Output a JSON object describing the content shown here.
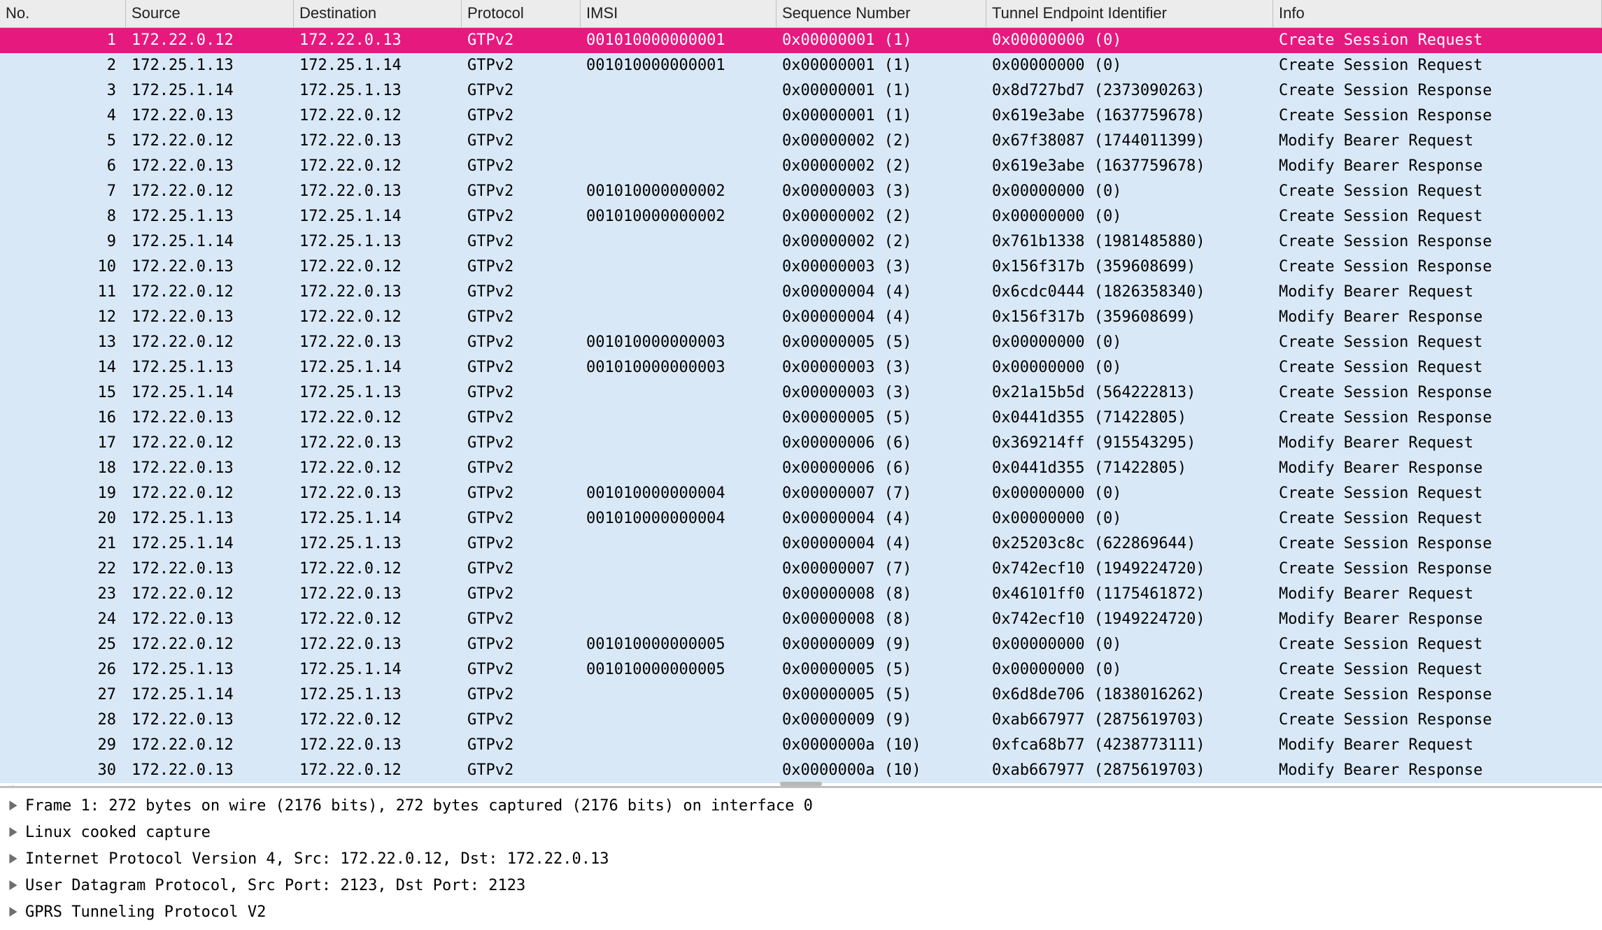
{
  "colors": {
    "header_bg": "#ececec",
    "header_border": "#c0c0c0",
    "row_selected_bg": "#e6197f",
    "row_selected_fg": "#ffffff",
    "row_alt_bg": "#d9e8f6",
    "row_bg": "#d9e8f6",
    "text": "#000000",
    "splitter": "#bfbfbf",
    "expander": "#6e6e6e",
    "gutter_line": "#9a9a9a"
  },
  "columns": {
    "no": "No.",
    "source": "Source",
    "destination": "Destination",
    "protocol": "Protocol",
    "imsi": "IMSI",
    "seq": "Sequence Number",
    "teid": "Tunnel Endpoint Identifier",
    "info": "Info"
  },
  "rows": [
    {
      "no": "1",
      "src": "172.22.0.12",
      "dst": "172.22.0.13",
      "prot": "GTPv2",
      "imsi": "001010000000001",
      "seq": "0x00000001 (1)",
      "teid": "0x00000000 (0)",
      "info": "Create Session Request",
      "selected": true
    },
    {
      "no": "2",
      "src": "172.25.1.13",
      "dst": "172.25.1.14",
      "prot": "GTPv2",
      "imsi": "001010000000001",
      "seq": "0x00000001 (1)",
      "teid": "0x00000000 (0)",
      "info": "Create Session Request"
    },
    {
      "no": "3",
      "src": "172.25.1.14",
      "dst": "172.25.1.13",
      "prot": "GTPv2",
      "imsi": "",
      "seq": "0x00000001 (1)",
      "teid": "0x8d727bd7 (2373090263)",
      "info": "Create Session Response"
    },
    {
      "no": "4",
      "src": "172.22.0.13",
      "dst": "172.22.0.12",
      "prot": "GTPv2",
      "imsi": "",
      "seq": "0x00000001 (1)",
      "teid": "0x619e3abe (1637759678)",
      "info": "Create Session Response"
    },
    {
      "no": "5",
      "src": "172.22.0.12",
      "dst": "172.22.0.13",
      "prot": "GTPv2",
      "imsi": "",
      "seq": "0x00000002 (2)",
      "teid": "0x67f38087 (1744011399)",
      "info": "Modify Bearer Request"
    },
    {
      "no": "6",
      "src": "172.22.0.13",
      "dst": "172.22.0.12",
      "prot": "GTPv2",
      "imsi": "",
      "seq": "0x00000002 (2)",
      "teid": "0x619e3abe (1637759678)",
      "info": "Modify Bearer Response"
    },
    {
      "no": "7",
      "src": "172.22.0.12",
      "dst": "172.22.0.13",
      "prot": "GTPv2",
      "imsi": "001010000000002",
      "seq": "0x00000003 (3)",
      "teid": "0x00000000 (0)",
      "info": "Create Session Request"
    },
    {
      "no": "8",
      "src": "172.25.1.13",
      "dst": "172.25.1.14",
      "prot": "GTPv2",
      "imsi": "001010000000002",
      "seq": "0x00000002 (2)",
      "teid": "0x00000000 (0)",
      "info": "Create Session Request"
    },
    {
      "no": "9",
      "src": "172.25.1.14",
      "dst": "172.25.1.13",
      "prot": "GTPv2",
      "imsi": "",
      "seq": "0x00000002 (2)",
      "teid": "0x761b1338 (1981485880)",
      "info": "Create Session Response"
    },
    {
      "no": "10",
      "src": "172.22.0.13",
      "dst": "172.22.0.12",
      "prot": "GTPv2",
      "imsi": "",
      "seq": "0x00000003 (3)",
      "teid": "0x156f317b (359608699)",
      "info": "Create Session Response"
    },
    {
      "no": "11",
      "src": "172.22.0.12",
      "dst": "172.22.0.13",
      "prot": "GTPv2",
      "imsi": "",
      "seq": "0x00000004 (4)",
      "teid": "0x6cdc0444 (1826358340)",
      "info": "Modify Bearer Request"
    },
    {
      "no": "12",
      "src": "172.22.0.13",
      "dst": "172.22.0.12",
      "prot": "GTPv2",
      "imsi": "",
      "seq": "0x00000004 (4)",
      "teid": "0x156f317b (359608699)",
      "info": "Modify Bearer Response"
    },
    {
      "no": "13",
      "src": "172.22.0.12",
      "dst": "172.22.0.13",
      "prot": "GTPv2",
      "imsi": "001010000000003",
      "seq": "0x00000005 (5)",
      "teid": "0x00000000 (0)",
      "info": "Create Session Request"
    },
    {
      "no": "14",
      "src": "172.25.1.13",
      "dst": "172.25.1.14",
      "prot": "GTPv2",
      "imsi": "001010000000003",
      "seq": "0x00000003 (3)",
      "teid": "0x00000000 (0)",
      "info": "Create Session Request"
    },
    {
      "no": "15",
      "src": "172.25.1.14",
      "dst": "172.25.1.13",
      "prot": "GTPv2",
      "imsi": "",
      "seq": "0x00000003 (3)",
      "teid": "0x21a15b5d (564222813)",
      "info": "Create Session Response"
    },
    {
      "no": "16",
      "src": "172.22.0.13",
      "dst": "172.22.0.12",
      "prot": "GTPv2",
      "imsi": "",
      "seq": "0x00000005 (5)",
      "teid": "0x0441d355 (71422805)",
      "info": "Create Session Response"
    },
    {
      "no": "17",
      "src": "172.22.0.12",
      "dst": "172.22.0.13",
      "prot": "GTPv2",
      "imsi": "",
      "seq": "0x00000006 (6)",
      "teid": "0x369214ff (915543295)",
      "info": "Modify Bearer Request"
    },
    {
      "no": "18",
      "src": "172.22.0.13",
      "dst": "172.22.0.12",
      "prot": "GTPv2",
      "imsi": "",
      "seq": "0x00000006 (6)",
      "teid": "0x0441d355 (71422805)",
      "info": "Modify Bearer Response"
    },
    {
      "no": "19",
      "src": "172.22.0.12",
      "dst": "172.22.0.13",
      "prot": "GTPv2",
      "imsi": "001010000000004",
      "seq": "0x00000007 (7)",
      "teid": "0x00000000 (0)",
      "info": "Create Session Request"
    },
    {
      "no": "20",
      "src": "172.25.1.13",
      "dst": "172.25.1.14",
      "prot": "GTPv2",
      "imsi": "001010000000004",
      "seq": "0x00000004 (4)",
      "teid": "0x00000000 (0)",
      "info": "Create Session Request"
    },
    {
      "no": "21",
      "src": "172.25.1.14",
      "dst": "172.25.1.13",
      "prot": "GTPv2",
      "imsi": "",
      "seq": "0x00000004 (4)",
      "teid": "0x25203c8c (622869644)",
      "info": "Create Session Response"
    },
    {
      "no": "22",
      "src": "172.22.0.13",
      "dst": "172.22.0.12",
      "prot": "GTPv2",
      "imsi": "",
      "seq": "0x00000007 (7)",
      "teid": "0x742ecf10 (1949224720)",
      "info": "Create Session Response"
    },
    {
      "no": "23",
      "src": "172.22.0.12",
      "dst": "172.22.0.13",
      "prot": "GTPv2",
      "imsi": "",
      "seq": "0x00000008 (8)",
      "teid": "0x46101ff0 (1175461872)",
      "info": "Modify Bearer Request"
    },
    {
      "no": "24",
      "src": "172.22.0.13",
      "dst": "172.22.0.12",
      "prot": "GTPv2",
      "imsi": "",
      "seq": "0x00000008 (8)",
      "teid": "0x742ecf10 (1949224720)",
      "info": "Modify Bearer Response"
    },
    {
      "no": "25",
      "src": "172.22.0.12",
      "dst": "172.22.0.13",
      "prot": "GTPv2",
      "imsi": "001010000000005",
      "seq": "0x00000009 (9)",
      "teid": "0x00000000 (0)",
      "info": "Create Session Request"
    },
    {
      "no": "26",
      "src": "172.25.1.13",
      "dst": "172.25.1.14",
      "prot": "GTPv2",
      "imsi": "001010000000005",
      "seq": "0x00000005 (5)",
      "teid": "0x00000000 (0)",
      "info": "Create Session Request"
    },
    {
      "no": "27",
      "src": "172.25.1.14",
      "dst": "172.25.1.13",
      "prot": "GTPv2",
      "imsi": "",
      "seq": "0x00000005 (5)",
      "teid": "0x6d8de706 (1838016262)",
      "info": "Create Session Response"
    },
    {
      "no": "28",
      "src": "172.22.0.13",
      "dst": "172.22.0.12",
      "prot": "GTPv2",
      "imsi": "",
      "seq": "0x00000009 (9)",
      "teid": "0xab667977 (2875619703)",
      "info": "Create Session Response"
    },
    {
      "no": "29",
      "src": "172.22.0.12",
      "dst": "172.22.0.13",
      "prot": "GTPv2",
      "imsi": "",
      "seq": "0x0000000a (10)",
      "teid": "0xfca68b77 (4238773111)",
      "info": "Modify Bearer Request"
    },
    {
      "no": "30",
      "src": "172.22.0.13",
      "dst": "172.22.0.12",
      "prot": "GTPv2",
      "imsi": "",
      "seq": "0x0000000a (10)",
      "teid": "0xab667977 (2875619703)",
      "info": "Modify Bearer Response"
    }
  ],
  "details": [
    "Frame 1: 272 bytes on wire (2176 bits), 272 bytes captured (2176 bits) on interface 0",
    "Linux cooked capture",
    "Internet Protocol Version 4, Src: 172.22.0.12, Dst: 172.22.0.13",
    "User Datagram Protocol, Src Port: 2123, Dst Port: 2123",
    "GPRS Tunneling Protocol V2"
  ]
}
